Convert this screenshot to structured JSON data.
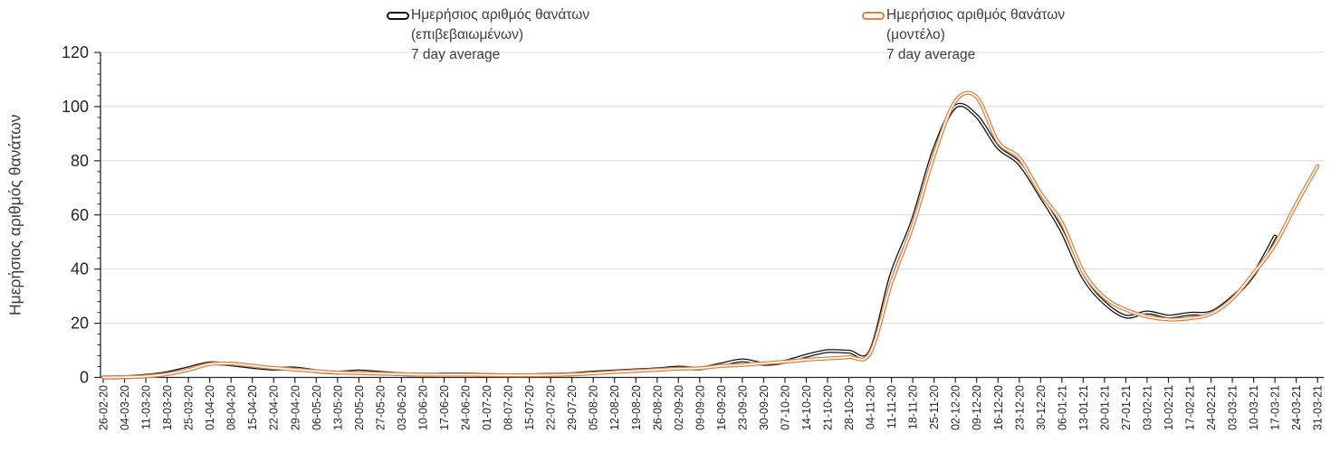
{
  "y_axis_title": "Ημερήσιος αριθμός θανάτων",
  "legend": [
    {
      "line1": "Ημερήσιος αριθμός θανάτων",
      "line2": "(επιβεβαιωμένων)",
      "line3": "7 day average",
      "color": "#111111"
    },
    {
      "line1": "Ημερήσιος αριθμός θανάτων",
      "line2": "(μοντέλο)",
      "line3": "7 day average",
      "color": "#E08140"
    }
  ],
  "colors": {
    "confirmed_line": "#111111",
    "model_line": "#E08140",
    "gridline": "#D9D9D9",
    "axis": "#262626",
    "tick_text": "#262626"
  },
  "chart_data": {
    "type": "line",
    "title": "",
    "xlabel": "",
    "ylabel": "Ημερήσιος αριθμός θανάτων",
    "ylim": [
      0,
      120
    ],
    "yticks": [
      0,
      20,
      40,
      60,
      80,
      100,
      120
    ],
    "y_minor_tick_step": 4,
    "grid": "horizontal",
    "legend_position": "top",
    "x_tick_rotation": 90,
    "x": [
      "26-02-20",
      "04-03-20",
      "11-03-20",
      "18-03-20",
      "25-03-20",
      "01-04-20",
      "08-04-20",
      "15-04-20",
      "22-04-20",
      "29-04-20",
      "06-05-20",
      "13-05-20",
      "20-05-20",
      "27-05-20",
      "03-06-20",
      "10-06-20",
      "17-06-20",
      "24-06-20",
      "01-07-20",
      "08-07-20",
      "15-07-20",
      "22-07-20",
      "29-07-20",
      "05-08-20",
      "12-08-20",
      "19-08-20",
      "26-08-20",
      "02-09-20",
      "09-09-20",
      "16-09-20",
      "23-09-20",
      "30-09-20",
      "07-10-20",
      "14-10-20",
      "21-10-20",
      "28-10-20",
      "04-11-20",
      "11-11-20",
      "18-11-20",
      "25-11-20",
      "02-12-20",
      "09-12-20",
      "16-12-20",
      "23-12-20",
      "30-12-20",
      "06-01-21",
      "13-01-21",
      "20-01-21",
      "27-01-21",
      "03-02-21",
      "10-02-21",
      "17-02-21",
      "24-02-21",
      "03-03-21",
      "10-03-21",
      "17-03-21",
      "24-03-21",
      "31-03-21"
    ],
    "series": [
      {
        "name": "Ημερήσιος αριθμός θανάτων (επιβεβαιωμένων) 7 day average",
        "color": "#111111",
        "values": [
          0,
          0.1,
          0.6,
          1.6,
          3.4,
          5.2,
          4.8,
          3.9,
          3.2,
          3.3,
          2.3,
          1.8,
          2.2,
          1.7,
          1.2,
          1.0,
          1.1,
          1.1,
          0.9,
          0.7,
          0.8,
          1.0,
          1.2,
          1.8,
          2.2,
          2.6,
          3.0,
          3.6,
          3.3,
          4.8,
          6.3,
          5.0,
          5.8,
          8.0,
          9.7,
          9.5,
          9.5,
          38,
          58,
          84,
          100,
          96.5,
          85,
          79,
          67,
          54,
          37,
          27.5,
          22.5,
          24,
          22.5,
          23.5,
          24,
          29.5,
          38,
          52,
          null,
          null
        ]
      },
      {
        "name": "Ημερήσιος αριθμός θανάτων (μοντέλο) 7 day average",
        "color": "#E08140",
        "values": [
          0,
          0.1,
          0.4,
          1.2,
          2.8,
          4.9,
          5.1,
          4.3,
          3.5,
          2.9,
          2.3,
          1.8,
          1.6,
          1.4,
          1.2,
          1.0,
          1.0,
          1.0,
          0.9,
          0.8,
          0.8,
          0.9,
          1.1,
          1.5,
          2.0,
          2.4,
          2.8,
          3.2,
          3.4,
          4.2,
          4.6,
          5.2,
          5.8,
          6.5,
          7.0,
          7.5,
          9.0,
          35,
          56,
          82,
          102,
          103.5,
          87,
          81,
          68,
          57,
          39,
          29.5,
          25,
          22.5,
          21.4,
          21.8,
          23.5,
          29,
          38.5,
          49,
          64,
          78
        ]
      }
    ]
  }
}
